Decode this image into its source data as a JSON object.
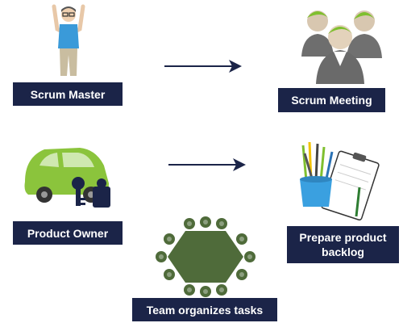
{
  "nodes": {
    "scrum_master": {
      "label": "Scrum Master",
      "icon": "person-arms-raised-icon"
    },
    "scrum_meeting": {
      "label": "Scrum Meeting",
      "icon": "meeting-people-icon"
    },
    "product_owner": {
      "label": "Product Owner",
      "icon": "car-and-keys-icon"
    },
    "prepare_backlog": {
      "label": "Prepare product\nbacklog",
      "icon": "pencils-clipboard-icon"
    },
    "team_tasks": {
      "label": "Team organizes tasks",
      "icon": "round-table-icon"
    }
  },
  "colors": {
    "label_bg": "#1b2448",
    "label_text": "#ffffff",
    "arrow": "#1b2448",
    "accent_green": "#7fbf2f",
    "table_green": "#4f6b3a"
  }
}
